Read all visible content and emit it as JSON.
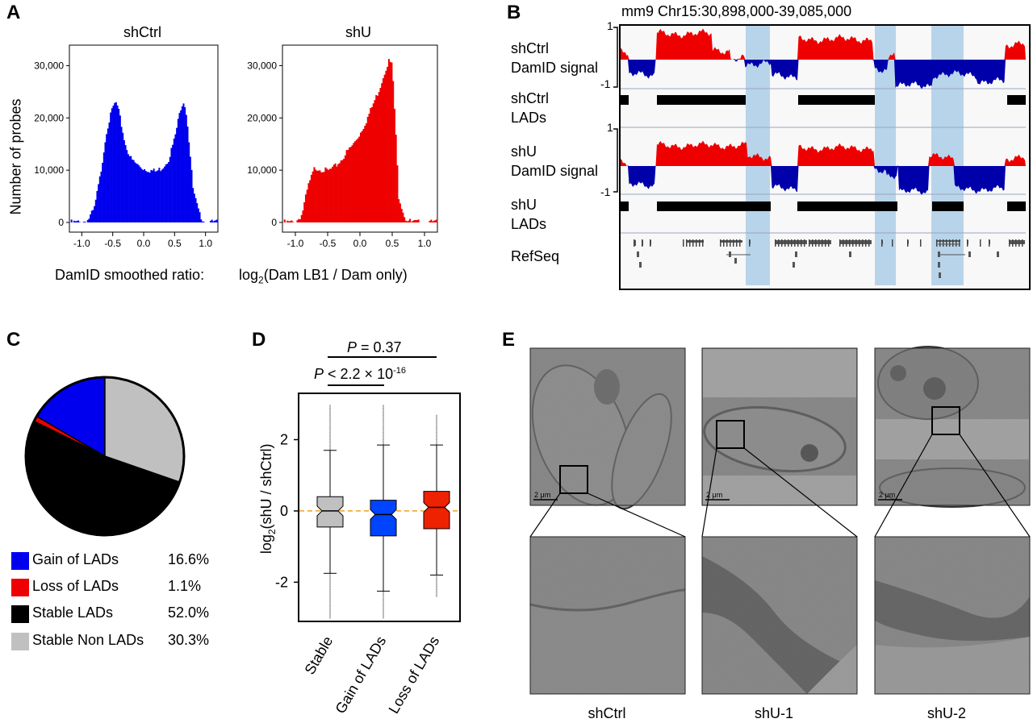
{
  "panels": {
    "a": "A",
    "b": "B",
    "c": "C",
    "d": "D",
    "e": "E"
  },
  "panel_a": {
    "ylabel": "Number of probes",
    "xlabel_main": "DamID smoothed ratio:",
    "xlabel_formula_pre": "log",
    "xlabel_formula_sub": "2",
    "xlabel_formula_post": "(Dam LB1 / Dam only)",
    "hist_left_title": "shCtrl",
    "hist_right_title": "shU",
    "yticks": [
      "30,000",
      "20,000",
      "10,000",
      "0"
    ],
    "xticks": [
      "-1.0",
      "-0.5",
      "0.0",
      "0.5",
      "1.0"
    ],
    "colors": {
      "left": "#0000ee",
      "right": "#ee0000"
    }
  },
  "panel_b": {
    "title": "mm9 Chr15:30,898,000-39,085,000",
    "tracks": [
      {
        "line1": "shCtrl",
        "line2": "DamID signal"
      },
      {
        "line1": "shCtrl",
        "line2": "LADs"
      },
      {
        "line1": "shU",
        "line2": "DamID signal"
      },
      {
        "line1": "shU",
        "line2": "LADs"
      }
    ],
    "refseq_label": "RefSeq",
    "scale_top": "1",
    "scale_bottom": "-1",
    "colors": {
      "pos": "#ee0000",
      "neg": "#0000aa",
      "highlight": "#b8d4ea"
    }
  },
  "panel_c": {
    "legend": [
      {
        "name": "Gain of LADs",
        "pct": "16.6%",
        "color": "#0000ee"
      },
      {
        "name": "Loss of LADs",
        "pct": "1.1%",
        "color": "#ee0000"
      },
      {
        "name": "Stable LADs",
        "pct": "52.0%",
        "color": "#000000"
      },
      {
        "name": "Stable Non LADs",
        "pct": "30.3%",
        "color": "#c0c0c0"
      }
    ]
  },
  "panel_d": {
    "ylabel_pre": "log",
    "ylabel_sub": "2",
    "ylabel_post": "(shU / shCtrl)",
    "p_top": {
      "letter": "P",
      "text": " = 0.37"
    },
    "p_bottom": {
      "letter": "P",
      "text": " < 2.2 × 10",
      "exp": "-16"
    },
    "yticks": [
      "2",
      "0",
      "-2"
    ],
    "categories": [
      "Stable",
      "Gain of  LADs",
      "Loss of  LADs"
    ],
    "colors": [
      "#c0c0c0",
      "#0044ff",
      "#ee2200"
    ]
  },
  "panel_e": {
    "captions": [
      "shCtrl",
      "shU-1",
      "shU-2"
    ],
    "scalebar": "2 μm"
  },
  "chart_data": [
    {
      "type": "bar",
      "title": "shCtrl",
      "xlabel": "DamID smoothed ratio: log2(Dam LB1 / Dam only)",
      "ylabel": "Number of probes",
      "x": [
        -1.0,
        -0.9,
        -0.8,
        -0.7,
        -0.6,
        -0.5,
        -0.45,
        -0.4,
        -0.3,
        -0.2,
        -0.1,
        0.0,
        0.1,
        0.2,
        0.3,
        0.4,
        0.5,
        0.6,
        0.65,
        0.7,
        0.8,
        0.9,
        1.0
      ],
      "values": [
        0,
        500,
        2500,
        9000,
        17500,
        22000,
        23000,
        21000,
        15000,
        12000,
        11000,
        10300,
        10000,
        9700,
        10500,
        12000,
        16000,
        22000,
        23500,
        20000,
        6000,
        1500,
        0
      ],
      "ylim": [
        0,
        33000
      ],
      "xlim": [
        -1.2,
        1.2
      ]
    },
    {
      "type": "bar",
      "title": "shU",
      "xlabel": "DamID smoothed ratio: log2(Dam LB1 / Dam only)",
      "ylabel": "Number of probes",
      "x": [
        -1.0,
        -0.9,
        -0.8,
        -0.7,
        -0.6,
        -0.5,
        -0.4,
        -0.3,
        -0.2,
        -0.1,
        0.0,
        0.1,
        0.2,
        0.3,
        0.4,
        0.45,
        0.5,
        0.55,
        0.6,
        0.7,
        0.8
      ],
      "values": [
        0,
        1500,
        7000,
        10500,
        10200,
        9800,
        10500,
        11800,
        13500,
        15000,
        17000,
        19500,
        22500,
        25500,
        29500,
        31000,
        30000,
        18000,
        5000,
        800,
        0
      ],
      "ylim": [
        0,
        33000
      ],
      "xlim": [
        -1.2,
        1.2
      ]
    },
    {
      "type": "pie",
      "labels": [
        "Gain of LADs",
        "Loss of LADs",
        "Stable LADs",
        "Stable Non LADs"
      ],
      "values": [
        16.6,
        1.1,
        52.0,
        30.3
      ]
    },
    {
      "type": "box",
      "categories": [
        "Stable",
        "Gain of  LADs",
        "Loss of  LADs"
      ],
      "ylabel": "log2(shU / shCtrl)",
      "ylim": [
        -3.1,
        3.3
      ],
      "series": [
        {
          "whisker_low": -1.75,
          "q1": -0.45,
          "median": 0.0,
          "q3": 0.4,
          "whisker_high": 1.7,
          "outlier_low": -3.0,
          "outlier_high": 3.0
        },
        {
          "whisker_low": -2.25,
          "q1": -0.7,
          "median": -0.1,
          "q3": 0.3,
          "whisker_high": 1.85,
          "outlier_low": -3.0,
          "outlier_high": 3.0
        },
        {
          "whisker_low": -1.8,
          "q1": -0.5,
          "median": 0.1,
          "q3": 0.55,
          "whisker_high": 1.85,
          "outlier_low": -2.4,
          "outlier_high": 2.7
        }
      ],
      "reference_line": 0
    }
  ]
}
